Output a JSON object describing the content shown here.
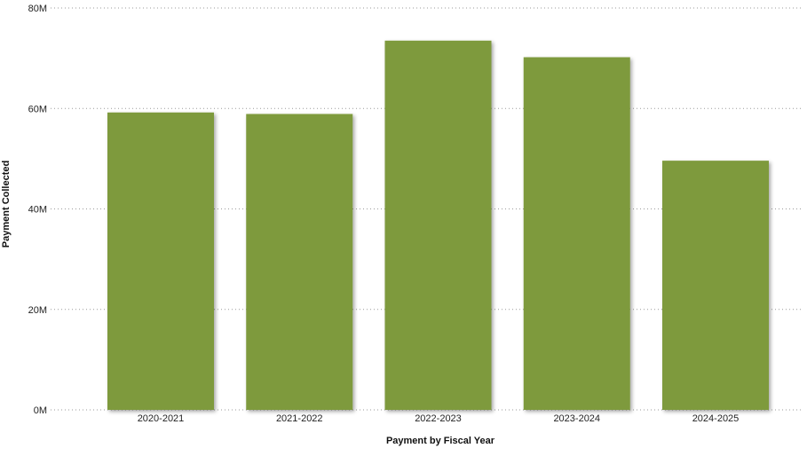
{
  "chart_data": {
    "type": "bar",
    "title": "",
    "xlabel": "Payment by Fiscal Year",
    "ylabel": "Payment Collected",
    "categories": [
      "2020-2021",
      "2021-2022",
      "2022-2023",
      "2023-2024",
      "2024-2025"
    ],
    "values": [
      59200000,
      58900000,
      73500000,
      70200000,
      49600000
    ],
    "ylim": [
      0,
      80000000
    ],
    "yticks": [
      0,
      20000000,
      40000000,
      60000000,
      80000000
    ],
    "ytick_labels": [
      "0M",
      "20M",
      "40M",
      "60M",
      "80M"
    ],
    "grid": true,
    "legend": "none",
    "colors": {
      "bar": "#7e9a3c",
      "grid": "#9a9a9a"
    }
  }
}
